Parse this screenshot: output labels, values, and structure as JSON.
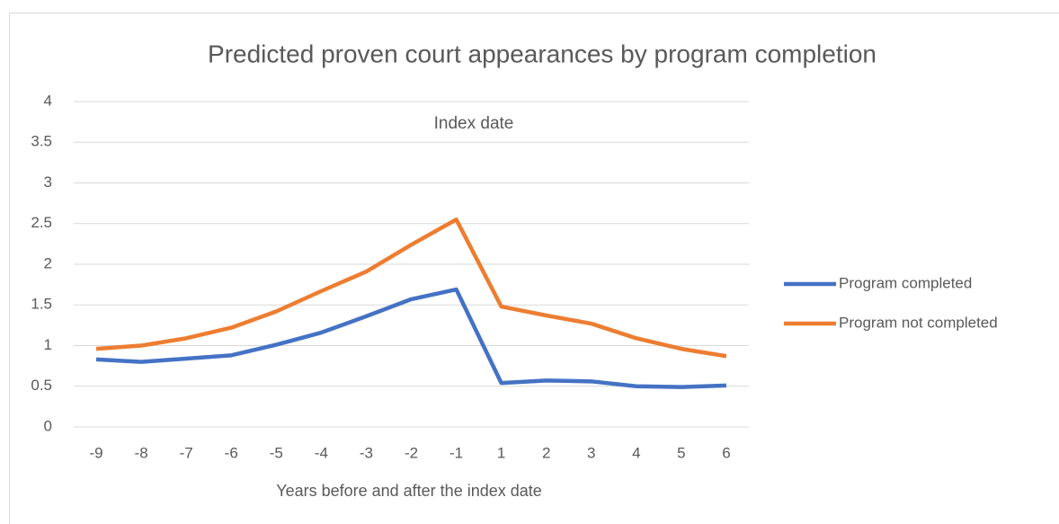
{
  "chart_data": {
    "type": "line",
    "title": "Predicted proven court appearances by program completion",
    "annotation": "Index date",
    "x_label": "Years before and after the index date",
    "categories": [
      -9,
      -8,
      -7,
      -6,
      -5,
      -4,
      -3,
      -2,
      -1,
      1,
      2,
      3,
      4,
      5,
      6
    ],
    "series": [
      {
        "name": "Program completed",
        "color": "#4472c4",
        "values": [
          0.83,
          0.8,
          0.84,
          0.88,
          1.01,
          1.16,
          1.36,
          1.57,
          1.69,
          0.54,
          0.57,
          0.56,
          0.5,
          0.49,
          0.51
        ]
      },
      {
        "name": "Program not completed",
        "color": "#ed7d31",
        "values": [
          0.96,
          1.0,
          1.09,
          1.22,
          1.42,
          1.67,
          1.91,
          2.24,
          2.55,
          1.48,
          1.37,
          1.27,
          1.09,
          0.96,
          0.87
        ]
      }
    ],
    "ylim": [
      0,
      4
    ],
    "yticks": [
      0,
      0.5,
      1,
      1.5,
      2,
      2.5,
      3,
      3.5,
      4
    ],
    "grid": true,
    "legend": "right"
  }
}
